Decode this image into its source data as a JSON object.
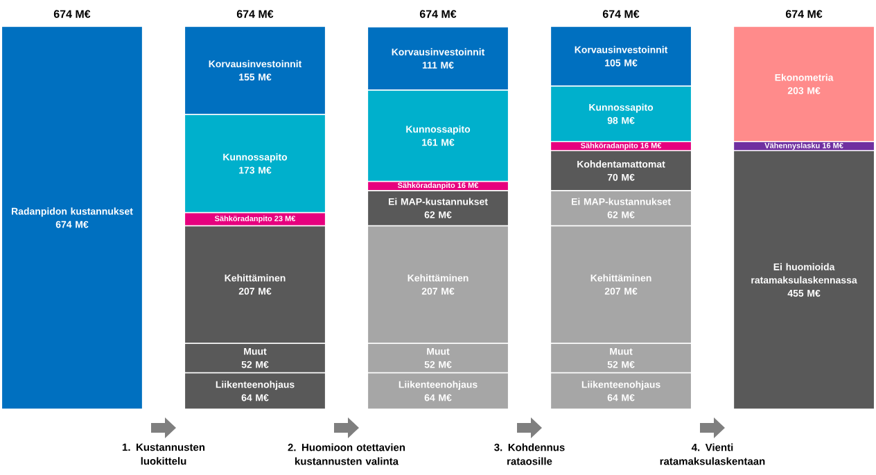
{
  "chart_data": {
    "type": "bar",
    "stacked": true,
    "categories": [
      null,
      null,
      null,
      null,
      null
    ],
    "ylim": [
      0,
      674
    ],
    "tick_labels": false,
    "series": [
      {
        "name": "Radanpidon kustannukset",
        "values": [
          674,
          null,
          null,
          null,
          null
        ],
        "value_labels": [
          "674 M€",
          null,
          null,
          null,
          null
        ],
        "colors": [
          "#0070c0",
          null,
          null,
          null,
          null
        ]
      },
      {
        "name": "Ei huomioida ratamaksulaskennassa",
        "values": [
          null,
          null,
          null,
          null,
          455
        ],
        "value_labels": [
          null,
          null,
          null,
          null,
          "455 M€"
        ],
        "colors": [
          null,
          null,
          null,
          null,
          "#595959"
        ]
      },
      {
        "name": "Liikenteenohjaus",
        "values": [
          null,
          64,
          64,
          64,
          null
        ],
        "value_labels": [
          null,
          "64 M€",
          "64 M€",
          "64 M€",
          null
        ],
        "colors": [
          null,
          "#595959",
          "#a6a6a6",
          "#a6a6a6",
          null
        ]
      },
      {
        "name": "Muut",
        "values": [
          null,
          52,
          52,
          52,
          null
        ],
        "value_labels": [
          null,
          "52 M€",
          "52 M€",
          "52 M€",
          null
        ],
        "colors": [
          null,
          "#595959",
          "#a6a6a6",
          "#a6a6a6",
          null
        ]
      },
      {
        "name": "Kehittäminen",
        "values": [
          null,
          207,
          207,
          207,
          null
        ],
        "value_labels": [
          null,
          "207 M€",
          "207 M€",
          "207 M€",
          null
        ],
        "colors": [
          null,
          "#595959",
          "#a6a6a6",
          "#a6a6a6",
          null
        ]
      },
      {
        "name": "Ei MAP-kustannukset",
        "values": [
          null,
          null,
          62,
          62,
          null
        ],
        "value_labels": [
          null,
          null,
          "62 M€",
          "62 M€",
          null
        ],
        "colors": [
          null,
          null,
          "#595959",
          "#a6a6a6",
          null
        ]
      },
      {
        "name": "Kohdentamattomat",
        "values": [
          null,
          null,
          null,
          70,
          null
        ],
        "value_labels": [
          null,
          null,
          null,
          "70 M€",
          null
        ],
        "colors": [
          null,
          null,
          null,
          "#595959",
          null
        ]
      },
      {
        "name": "Sähköradanpito",
        "values": [
          null,
          23,
          16,
          16,
          null
        ],
        "value_labels": [
          null,
          "23 M€",
          "16 M€",
          "16 M€",
          null
        ],
        "colors": [
          null,
          "#e6007e",
          "#e6007e",
          "#e6007e",
          null
        ]
      },
      {
        "name": "Vähennyslasku",
        "values": [
          null,
          null,
          null,
          null,
          16
        ],
        "value_labels": [
          null,
          null,
          null,
          null,
          "16 M€"
        ],
        "colors": [
          null,
          null,
          null,
          null,
          "#7030a0"
        ]
      },
      {
        "name": "Kunnossapito",
        "values": [
          null,
          173,
          161,
          98,
          null
        ],
        "value_labels": [
          null,
          "173 M€",
          "161 M€",
          "98 M€",
          null
        ],
        "colors": [
          null,
          "#00b0cc",
          "#00b0cc",
          "#00b0cc",
          null
        ]
      },
      {
        "name": "Ekonometria",
        "values": [
          null,
          null,
          null,
          null,
          203
        ],
        "value_labels": [
          null,
          null,
          null,
          null,
          "203 M€"
        ],
        "colors": [
          null,
          null,
          null,
          null,
          "#ff8b8b"
        ]
      },
      {
        "name": "Korvausinvestoinnit",
        "values": [
          null,
          155,
          111,
          105,
          null
        ],
        "value_labels": [
          null,
          "155 M€",
          "111 M€",
          "105 M€",
          null
        ],
        "colors": [
          null,
          "#0070c0",
          "#0070c0",
          "#0070c0",
          null
        ]
      }
    ],
    "totals": [
      "674 M€",
      "674 M€",
      "674 M€",
      "674 M€",
      "674 M€"
    ],
    "annotations": [
      "1. Kustannusten luokittelu",
      "2. Huomioon otettavien kustannusten valinta",
      "3. Kohdennus rataosille",
      "4. Vienti ratamaksulaskentaan"
    ]
  }
}
